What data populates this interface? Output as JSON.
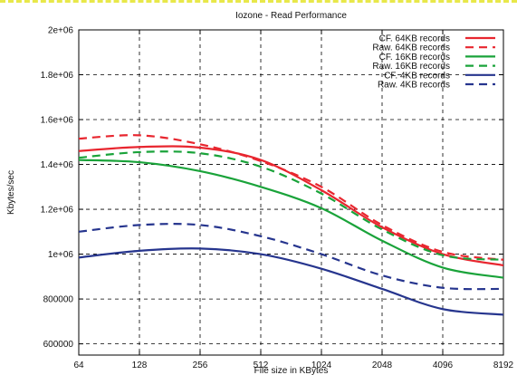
{
  "chart_data": {
    "type": "line",
    "title": "Iozone - Read Performance",
    "xlabel": "File size in KBytes",
    "ylabel": "Kbytes/sec",
    "x_scale": "log2",
    "x_ticks": [
      64,
      128,
      256,
      512,
      1024,
      2048,
      4096,
      8192
    ],
    "x_tick_labels": [
      "64",
      "128",
      "256",
      "512",
      "1024",
      "2048",
      "4096",
      "8192"
    ],
    "y_ticks": [
      600000,
      800000,
      1000000,
      1200000,
      1400000,
      1600000,
      1800000,
      2000000
    ],
    "y_tick_labels": [
      "600000",
      "800000",
      "1e+06",
      "1.2e+06",
      "1.4e+06",
      "1.6e+06",
      "1.8e+06",
      "2e+06"
    ],
    "xlim": [
      64,
      8192
    ],
    "ylim": [
      550000,
      2000000
    ],
    "grid": true,
    "legend_position": "top-right",
    "series": [
      {
        "name": "CF. 64KB records",
        "color": "#e8262f",
        "dash": "solid",
        "x": [
          64,
          128,
          256,
          512,
          1024,
          2048,
          4096,
          8192
        ],
        "y": [
          1460000,
          1478000,
          1475000,
          1420000,
          1285000,
          1120000,
          1000000,
          950000
        ]
      },
      {
        "name": "Raw. 64KB records",
        "color": "#e8262f",
        "dash": "dashed",
        "x": [
          64,
          128,
          256,
          512,
          1024,
          2048,
          4096,
          8192
        ],
        "y": [
          1515000,
          1530000,
          1490000,
          1415000,
          1300000,
          1130000,
          1010000,
          975000
        ]
      },
      {
        "name": "CF. 16KB records",
        "color": "#1aa33a",
        "dash": "solid",
        "x": [
          64,
          128,
          256,
          512,
          1024,
          2048,
          4096,
          8192
        ],
        "y": [
          1420000,
          1410000,
          1370000,
          1300000,
          1205000,
          1060000,
          940000,
          895000
        ]
      },
      {
        "name": "Raw. 16KB records",
        "color": "#1aa33a",
        "dash": "dashed",
        "x": [
          64,
          128,
          256,
          512,
          1024,
          2048,
          4096,
          8192
        ],
        "y": [
          1430000,
          1455000,
          1450000,
          1390000,
          1270000,
          1110000,
          995000,
          975000
        ]
      },
      {
        "name": "CF. 4KB records",
        "color": "#26358e",
        "dash": "solid",
        "x": [
          64,
          128,
          256,
          512,
          1024,
          2048,
          4096,
          8192
        ],
        "y": [
          985000,
          1015000,
          1025000,
          1000000,
          935000,
          845000,
          755000,
          730000
        ]
      },
      {
        "name": "Raw. 4KB records",
        "color": "#26358e",
        "dash": "dashed",
        "x": [
          64,
          128,
          256,
          512,
          1024,
          2048,
          4096,
          8192
        ],
        "y": [
          1100000,
          1130000,
          1130000,
          1080000,
          1000000,
          905000,
          850000,
          845000
        ]
      }
    ]
  }
}
